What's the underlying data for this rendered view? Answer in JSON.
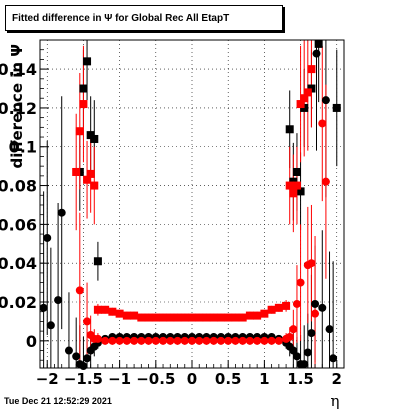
{
  "title": {
    "text": "Fitted difference in  Ψ  for Global Rec All EtapT"
  },
  "footer": {
    "timestamp": "Tue Dec 21 12:52:29 2021"
  },
  "chart_data": {
    "type": "scatter",
    "title": "Fitted difference in  Ψ  for Global Rec All EtapT",
    "xlabel": "η",
    "ylabel": "difference in Ψ",
    "xlim": [
      -2.1,
      2.1
    ],
    "ylim": [
      -0.014,
      0.155
    ],
    "grid": true,
    "x_ticks": [
      -2,
      -1.5,
      -1,
      -0.5,
      0,
      0.5,
      1,
      1.5,
      2
    ],
    "x_tick_labels": [
      "−2",
      "−1.5",
      "−1",
      "−0.5",
      "0",
      "0.5",
      "1",
      "1.5",
      "2"
    ],
    "y_ticks": [
      0,
      0.02,
      0.04,
      0.06,
      0.08,
      0.1,
      0.12,
      0.14
    ],
    "y_tick_labels": [
      "0",
      "0.02",
      "0.04",
      "0.06",
      "0.08",
      "0.1",
      "0.12",
      "0.14"
    ],
    "colors": {
      "black_series": "#000000",
      "red_series": "#ff0000"
    },
    "series": [
      {
        "marker": "circle",
        "color": "#000000",
        "points": [
          [
            -2.05,
            0.017,
            0.06
          ],
          [
            -2.0,
            0.053,
            0.05
          ],
          [
            -1.95,
            0.008,
            0.04
          ],
          [
            -1.85,
            0.021,
            0.05
          ],
          [
            -1.8,
            0.066,
            0.06
          ],
          [
            -1.7,
            -0.005,
            0.03
          ],
          [
            -1.6,
            -0.008,
            0.02
          ],
          [
            -1.55,
            -0.012,
            0.02
          ],
          [
            -1.5,
            -0.013,
            0.015
          ],
          [
            -1.45,
            -0.009,
            0.01
          ],
          [
            -1.4,
            -0.005,
            0.01
          ],
          [
            -1.35,
            -0.003,
            0.005
          ],
          [
            -1.3,
            -0.001,
            0.003
          ],
          [
            -1.2,
            0.001,
            0.002
          ],
          [
            -1.1,
            0.002,
            0.002
          ],
          [
            -1.0,
            0.002,
            0.002
          ],
          [
            -0.9,
            0.002,
            0.002
          ],
          [
            -0.8,
            0.002,
            0.002
          ],
          [
            -0.7,
            0.002,
            0.002
          ],
          [
            -0.6,
            0.002,
            0.002
          ],
          [
            -0.5,
            0.002,
            0.002
          ],
          [
            -0.4,
            0.002,
            0.002
          ],
          [
            -0.3,
            0.002,
            0.002
          ],
          [
            -0.2,
            0.002,
            0.002
          ],
          [
            -0.1,
            0.002,
            0.002
          ],
          [
            0.0,
            0.002,
            0.002
          ],
          [
            0.1,
            0.002,
            0.002
          ],
          [
            0.2,
            0.002,
            0.002
          ],
          [
            0.3,
            0.002,
            0.002
          ],
          [
            0.4,
            0.002,
            0.002
          ],
          [
            0.5,
            0.002,
            0.002
          ],
          [
            0.6,
            0.002,
            0.002
          ],
          [
            0.7,
            0.002,
            0.002
          ],
          [
            0.8,
            0.002,
            0.002
          ],
          [
            0.9,
            0.002,
            0.002
          ],
          [
            1.0,
            0.002,
            0.002
          ],
          [
            1.1,
            0.002,
            0.002
          ],
          [
            1.2,
            0.001,
            0.002
          ],
          [
            1.3,
            -0.001,
            0.003
          ],
          [
            1.35,
            -0.003,
            0.005
          ],
          [
            1.4,
            -0.005,
            0.01
          ],
          [
            1.45,
            -0.008,
            0.01
          ],
          [
            1.5,
            -0.012,
            0.015
          ],
          [
            1.55,
            -0.012,
            0.02
          ],
          [
            1.6,
            -0.006,
            0.02
          ],
          [
            1.65,
            0.004,
            0.03
          ],
          [
            1.7,
            0.019,
            0.03
          ],
          [
            1.72,
            0.148,
            0.05
          ],
          [
            1.8,
            0.017,
            0.04
          ],
          [
            1.85,
            0.124,
            0.05
          ],
          [
            1.9,
            0.006,
            0.04
          ],
          [
            1.95,
            -0.009,
            0.05
          ]
        ]
      },
      {
        "marker": "square",
        "color": "#000000",
        "points": [
          [
            -1.55,
            0.087,
            0.02
          ],
          [
            -1.5,
            0.13,
            0.02
          ],
          [
            -1.45,
            0.144,
            0.02
          ],
          [
            -1.4,
            0.106,
            0.02
          ],
          [
            -1.35,
            0.104,
            0.02
          ],
          [
            -1.3,
            0.041,
            0.01
          ],
          [
            1.35,
            0.109,
            0.02
          ],
          [
            1.4,
            0.082,
            0.02
          ],
          [
            1.45,
            0.087,
            0.02
          ],
          [
            1.5,
            0.077,
            0.02
          ],
          [
            1.55,
            0.12,
            0.02
          ],
          [
            1.65,
            0.13,
            0.02
          ],
          [
            1.75,
            0.153,
            0.03
          ],
          [
            2.0,
            0.12,
            0.03
          ]
        ]
      },
      {
        "marker": "circle",
        "color": "#ff0000",
        "points": [
          [
            -1.55,
            0.026,
            0.04
          ],
          [
            -1.45,
            0.01,
            0.02
          ],
          [
            -1.4,
            0.003,
            0.01
          ],
          [
            -1.35,
            0.001,
            0.005
          ],
          [
            -1.3,
            0.001,
            0.003
          ],
          [
            -1.2,
            0.0,
            0.002
          ],
          [
            -1.1,
            0.0,
            0.002
          ],
          [
            -1.0,
            0.0,
            0.002
          ],
          [
            -0.9,
            0.0,
            0.002
          ],
          [
            -0.8,
            0.0,
            0.002
          ],
          [
            -0.7,
            0.0,
            0.002
          ],
          [
            -0.6,
            0.0,
            0.002
          ],
          [
            -0.5,
            0.0,
            0.002
          ],
          [
            -0.4,
            0.0,
            0.002
          ],
          [
            -0.3,
            0.0,
            0.002
          ],
          [
            -0.2,
            0.0,
            0.002
          ],
          [
            -0.1,
            0.0,
            0.002
          ],
          [
            0.0,
            0.0,
            0.002
          ],
          [
            0.1,
            0.0,
            0.002
          ],
          [
            0.2,
            0.0,
            0.002
          ],
          [
            0.3,
            0.0,
            0.002
          ],
          [
            0.4,
            0.0,
            0.002
          ],
          [
            0.5,
            0.0,
            0.002
          ],
          [
            0.6,
            0.0,
            0.002
          ],
          [
            0.7,
            0.0,
            0.002
          ],
          [
            0.8,
            0.0,
            0.002
          ],
          [
            0.9,
            0.0,
            0.002
          ],
          [
            1.0,
            0.0,
            0.002
          ],
          [
            1.1,
            0.0,
            0.002
          ],
          [
            1.2,
            0.0,
            0.002
          ],
          [
            1.3,
            0.001,
            0.003
          ],
          [
            1.35,
            0.002,
            0.005
          ],
          [
            1.4,
            0.006,
            0.01
          ],
          [
            1.45,
            0.019,
            0.02
          ],
          [
            1.5,
            0.03,
            0.03
          ],
          [
            1.6,
            0.039,
            0.03
          ],
          [
            1.65,
            0.04,
            0.03
          ],
          [
            1.7,
            0.014,
            0.04
          ],
          [
            1.8,
            0.112,
            0.04
          ],
          [
            1.85,
            0.082,
            0.05
          ]
        ]
      },
      {
        "marker": "square",
        "color": "#ff0000",
        "points": [
          [
            -1.6,
            0.087,
            0.03
          ],
          [
            -1.55,
            0.108,
            0.03
          ],
          [
            -1.5,
            0.122,
            0.03
          ],
          [
            -1.45,
            0.083,
            0.02
          ],
          [
            -1.4,
            0.086,
            0.02
          ],
          [
            -1.35,
            0.08,
            0.02
          ],
          [
            -1.3,
            0.016,
            0.003
          ],
          [
            -1.2,
            0.016,
            0.002
          ],
          [
            -1.1,
            0.015,
            0.002
          ],
          [
            -1.0,
            0.014,
            0.002
          ],
          [
            -0.9,
            0.013,
            0.002
          ],
          [
            -0.8,
            0.013,
            0.002
          ],
          [
            -0.7,
            0.012,
            0.002
          ],
          [
            -0.6,
            0.012,
            0.002
          ],
          [
            -0.5,
            0.012,
            0.002
          ],
          [
            -0.4,
            0.012,
            0.002
          ],
          [
            -0.3,
            0.012,
            0.002
          ],
          [
            -0.2,
            0.012,
            0.002
          ],
          [
            -0.1,
            0.012,
            0.002
          ],
          [
            0.0,
            0.012,
            0.002
          ],
          [
            0.1,
            0.012,
            0.002
          ],
          [
            0.2,
            0.012,
            0.002
          ],
          [
            0.3,
            0.012,
            0.002
          ],
          [
            0.4,
            0.012,
            0.002
          ],
          [
            0.5,
            0.012,
            0.002
          ],
          [
            0.6,
            0.012,
            0.002
          ],
          [
            0.7,
            0.012,
            0.002
          ],
          [
            0.8,
            0.013,
            0.002
          ],
          [
            0.9,
            0.013,
            0.002
          ],
          [
            1.0,
            0.014,
            0.002
          ],
          [
            1.1,
            0.016,
            0.002
          ],
          [
            1.2,
            0.017,
            0.002
          ],
          [
            1.3,
            0.018,
            0.003
          ],
          [
            1.35,
            0.08,
            0.02
          ],
          [
            1.4,
            0.076,
            0.02
          ],
          [
            1.45,
            0.08,
            0.02
          ],
          [
            1.5,
            0.122,
            0.03
          ],
          [
            1.55,
            0.125,
            0.03
          ],
          [
            1.6,
            0.128,
            0.03
          ],
          [
            1.65,
            0.14,
            0.03
          ]
        ]
      }
    ]
  }
}
